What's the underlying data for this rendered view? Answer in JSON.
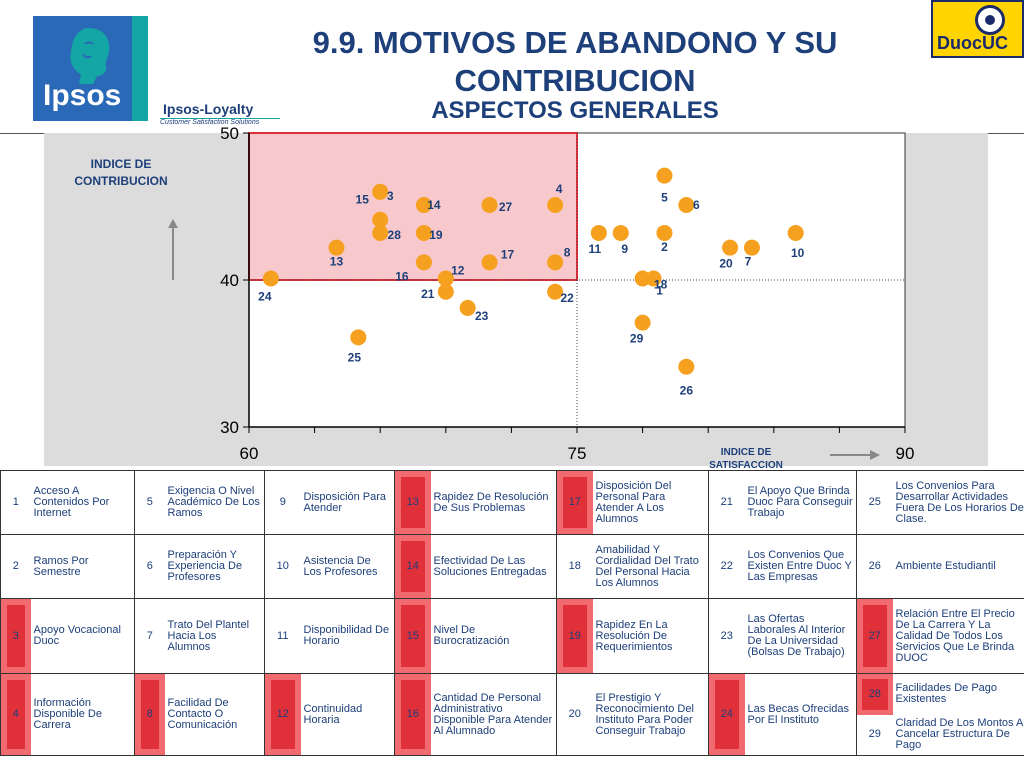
{
  "header": {
    "title": "9.9. MOTIVOS DE ABANDONO Y SU CONTRIBUCION",
    "subtitle": "ASPECTOS GENERALES",
    "logo_left_text": "Ipsos",
    "loyalty_text": "Ipsos-Loyalty",
    "loyalty_subtext": "Customer Satisfaction Solutions",
    "logo_right_text": "DuocUC"
  },
  "colors": {
    "title": "#1d3f7a",
    "point": "#f5a01e",
    "highlight_region": "#f7c9cc",
    "highlight_border": "#e0303a",
    "highlight_cell": "#e0303a"
  },
  "chart_data": {
    "type": "scatter",
    "title": "ASPECTOS GENERALES",
    "xlabel": "INDICE DE SATISFACCION",
    "ylabel": "INDICE DE CONTRIBUCION",
    "xlim": [
      60,
      90
    ],
    "ylim": [
      30,
      50
    ],
    "xticks": [
      60,
      75,
      90
    ],
    "yticks": [
      30,
      40,
      50
    ],
    "grid": false,
    "reference_lines": {
      "x": 75,
      "y": 40
    },
    "highlight_region": {
      "x": [
        60,
        75
      ],
      "y": [
        40,
        50
      ]
    },
    "points": [
      {
        "label": "1",
        "x": 78.5,
        "y": 40.1
      },
      {
        "label": "2",
        "x": 79.0,
        "y": 43.2
      },
      {
        "label": "3",
        "x": 66.0,
        "y": 46.0
      },
      {
        "label": "4",
        "x": 74.0,
        "y": 45.1
      },
      {
        "label": "5",
        "x": 79.0,
        "y": 47.1
      },
      {
        "label": "6",
        "x": 80.0,
        "y": 45.1
      },
      {
        "label": "7",
        "x": 83.0,
        "y": 42.2
      },
      {
        "label": "8",
        "x": 74.0,
        "y": 41.2
      },
      {
        "label": "9",
        "x": 77.0,
        "y": 43.2
      },
      {
        "label": "10",
        "x": 85.0,
        "y": 43.2
      },
      {
        "label": "11",
        "x": 76.0,
        "y": 43.2
      },
      {
        "label": "12",
        "x": 69.0,
        "y": 40.1
      },
      {
        "label": "13",
        "x": 64.0,
        "y": 42.2
      },
      {
        "label": "14",
        "x": 68.0,
        "y": 45.1
      },
      {
        "label": "15",
        "x": 66.0,
        "y": 44.1
      },
      {
        "label": "16",
        "x": 68.0,
        "y": 41.2
      },
      {
        "label": "17",
        "x": 71.0,
        "y": 41.2
      },
      {
        "label": "18",
        "x": 78.0,
        "y": 40.1
      },
      {
        "label": "19",
        "x": 68.0,
        "y": 43.2
      },
      {
        "label": "20",
        "x": 82.0,
        "y": 42.2
      },
      {
        "label": "21",
        "x": 69.0,
        "y": 39.2
      },
      {
        "label": "22",
        "x": 74.0,
        "y": 39.2
      },
      {
        "label": "23",
        "x": 70.0,
        "y": 38.1
      },
      {
        "label": "24",
        "x": 61.0,
        "y": 40.1
      },
      {
        "label": "25",
        "x": 65.0,
        "y": 36.1
      },
      {
        "label": "26",
        "x": 80.0,
        "y": 34.1
      },
      {
        "label": "27",
        "x": 71.0,
        "y": 45.1
      },
      {
        "label": "28",
        "x": 66.0,
        "y": 43.2
      },
      {
        "label": "29",
        "x": 78.0,
        "y": 37.1
      }
    ]
  },
  "legend": {
    "rows": [
      [
        {
          "n": "1",
          "text": "Acceso A Contenidos Por Internet",
          "hl": false
        },
        {
          "n": "5",
          "text": "Exigencia O Nivel Académico De Los Ramos",
          "hl": false
        },
        {
          "n": "9",
          "text": "Disposición Para Atender",
          "hl": false
        },
        {
          "n": "13",
          "text": "Rapidez De Resolución De Sus Problemas",
          "hl": true
        },
        {
          "n": "17",
          "text": "Disposición Del Personal Para Atender A Los Alumnos",
          "hl": true
        },
        {
          "n": "21",
          "text": "El Apoyo Que Brinda Duoc Para Conseguir Trabajo",
          "hl": false
        },
        {
          "n": "25",
          "text": "Los Convenios Para Desarrollar Actividades Fuera De Los Horarios De Clase.",
          "hl": false
        }
      ],
      [
        {
          "n": "2",
          "text": "Ramos Por Semestre",
          "hl": false
        },
        {
          "n": "6",
          "text": "Preparación Y Experiencia De Profesores",
          "hl": false
        },
        {
          "n": "10",
          "text": "Asistencia De Los Profesores",
          "hl": false
        },
        {
          "n": "14",
          "text": "Efectividad De Las Soluciones Entregadas",
          "hl": true
        },
        {
          "n": "18",
          "text": "Amabilidad Y Cordialidad Del Trato Del Personal Hacia Los Alumnos",
          "hl": false
        },
        {
          "n": "22",
          "text": "Los Convenios Que Existen Entre Duoc Y Las Empresas",
          "hl": false
        },
        {
          "n": "26",
          "text": "Ambiente Estudiantil",
          "hl": false
        }
      ],
      [
        {
          "n": "3",
          "text": "Apoyo Vocacional Duoc",
          "hl": true
        },
        {
          "n": "7",
          "text": "Trato Del Plantel Hacia Los Alumnos",
          "hl": false
        },
        {
          "n": "11",
          "text": "Disponibilidad De Horario",
          "hl": false
        },
        {
          "n": "15",
          "text": "Nivel De Burocratización",
          "hl": true
        },
        {
          "n": "19",
          "text": "Rapidez En La Resolución De Requerimientos",
          "hl": true
        },
        {
          "n": "23",
          "text": "Las Ofertas Laborales Al Interior De La Universidad (Bolsas De Trabajo)",
          "hl": false
        },
        {
          "n": "27",
          "text": "Relación Entre El Precio De La Carrera Y La Calidad De Todos Los Servicios Que Le Brinda DUOC",
          "hl": true
        }
      ],
      [
        {
          "n": "4",
          "text": "Información Disponible De Carrera",
          "hl": true
        },
        {
          "n": "8",
          "text": "Facilidad De Contacto O Comunicación",
          "hl": true
        },
        {
          "n": "12",
          "text": "Continuidad Horaria",
          "hl": true
        },
        {
          "n": "16",
          "text": "Cantidad De Personal Administrativo Disponible Para Atender Al Alumnado",
          "hl": true
        },
        {
          "n": "20",
          "text": "El Prestigio Y Reconocimiento Del Instituto Para Poder Conseguir Trabajo",
          "hl": false
        },
        {
          "n": "24",
          "text": "Las Becas Ofrecidas Por El Instituto",
          "hl": true
        },
        {
          "n": "28",
          "text": "Facilidades De Pago Existentes",
          "hl": true,
          "n2": "29",
          "text2": "Claridad De Los Montos A Cancelar Estructura De Pago",
          "hl2": false
        }
      ]
    ]
  }
}
